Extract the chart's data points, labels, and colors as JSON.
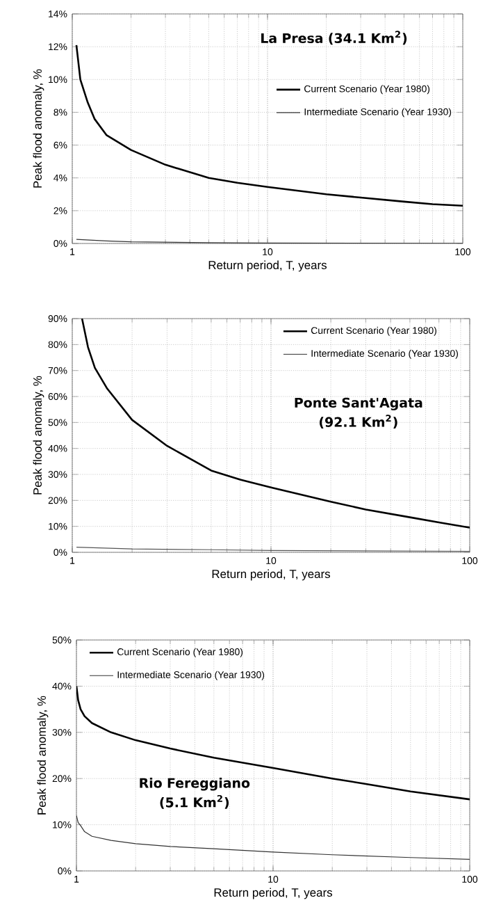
{
  "chart_data": [
    {
      "type": "line",
      "title": "La Presa (34.1 Km$^{2}$)",
      "xlabel": "Return period, T, years",
      "ylabel": "Peak flood anomaly, %",
      "log": "x",
      "grid": true,
      "legend": "right",
      "xlim": [
        1,
        100
      ],
      "xticks": [
        1,
        10,
        100
      ],
      "ylim": [
        0,
        14
      ],
      "yticks": [
        {
          "value": 0,
          "label": "0%"
        },
        {
          "value": 2,
          "label": "2%"
        },
        {
          "value": 4,
          "label": "4%"
        },
        {
          "value": 6,
          "label": "6%"
        },
        {
          "value": 8,
          "label": "8%"
        },
        {
          "value": 10,
          "label": "10%"
        },
        {
          "value": 12,
          "label": "12%"
        },
        {
          "value": 14,
          "label": "14%"
        }
      ],
      "series": [
        {
          "name": "Current Scenario (Year 1980)",
          "color": "#000000",
          "x": [
            1.05,
            1.1,
            1.2,
            1.3,
            1.5,
            2,
            3,
            5,
            7,
            10,
            20,
            30,
            50,
            70,
            100
          ],
          "values": [
            12.1,
            10,
            8.6,
            7.6,
            6.6,
            5.7,
            4.8,
            4.0,
            3.7,
            3.45,
            3.0,
            2.8,
            2.55,
            2.4,
            2.3
          ]
        },
        {
          "name": "Intermediate Scenario (Year 1930)",
          "color": "#333333",
          "x": [
            1.05,
            1.5,
            2,
            5,
            10,
            100
          ],
          "values": [
            0.25,
            0.15,
            0.1,
            0.05,
            0.03,
            0.01
          ]
        }
      ]
    },
    {
      "type": "line",
      "title": "Ponte Sant'Agata (92.1 Km$^{2}$)",
      "xlabel": "Return period, T, years",
      "ylabel": "Peak flood anomaly, %",
      "log": "x",
      "grid": true,
      "legend": "top right",
      "xlim": [
        1,
        100
      ],
      "xticks": [
        1,
        10,
        100
      ],
      "ylim": [
        0,
        90
      ],
      "yticks": [
        {
          "value": 0,
          "label": "0%"
        },
        {
          "value": 10,
          "label": "10%"
        },
        {
          "value": 20,
          "label": "20%"
        },
        {
          "value": 30,
          "label": "30%"
        },
        {
          "value": 40,
          "label": "40%"
        },
        {
          "value": 50,
          "label": "50%"
        },
        {
          "value": 60,
          "label": "60%"
        },
        {
          "value": 70,
          "label": "70%"
        },
        {
          "value": 80,
          "label": "80%"
        },
        {
          "value": 90,
          "label": "90%"
        }
      ],
      "series": [
        {
          "name": "Current Scenario (Year 1980)",
          "color": "#000000",
          "x": [
            1.12,
            1.2,
            1.3,
            1.5,
            2,
            3,
            5,
            7,
            10,
            20,
            30,
            50,
            70,
            100
          ],
          "values": [
            90,
            79,
            71,
            63,
            51,
            41,
            31.5,
            28,
            25,
            19.5,
            16.5,
            13.5,
            11.5,
            9.5
          ]
        },
        {
          "name": "Intermediate Scenario (Year 1930)",
          "color": "#555555",
          "x": [
            1.05,
            2,
            5,
            10,
            100
          ],
          "values": [
            2,
            1.3,
            1,
            0.7,
            0.4
          ]
        }
      ]
    },
    {
      "type": "line",
      "title": "Rio Fereggiano (5.1 Km$^{2}$)",
      "xlabel": "Return period, T, years",
      "ylabel": "Peak flood anomaly, %",
      "log": "x",
      "grid": true,
      "legend": "top left",
      "xlim": [
        1,
        100
      ],
      "xticks": [
        1,
        10,
        100
      ],
      "ylim": [
        0,
        50
      ],
      "yticks": [
        {
          "value": 0,
          "label": "0%"
        },
        {
          "value": 10,
          "label": "10%"
        },
        {
          "value": 20,
          "label": "20%"
        },
        {
          "value": 30,
          "label": "30%"
        },
        {
          "value": 40,
          "label": "40%"
        },
        {
          "value": 50,
          "label": "50%"
        }
      ],
      "series": [
        {
          "name": "Current Scenario (Year 1980)",
          "color": "#000000",
          "x": [
            1,
            1.02,
            1.05,
            1.1,
            1.2,
            1.5,
            2,
            3,
            5,
            10,
            20,
            30,
            50,
            100
          ],
          "values": [
            40,
            37,
            35,
            33.5,
            32,
            30,
            28.3,
            26.5,
            24.5,
            22.3,
            20,
            18.8,
            17.2,
            15.5
          ]
        },
        {
          "name": "Intermediate Scenario (Year 1930)",
          "color": "#333333",
          "x": [
            1,
            1.02,
            1.05,
            1.1,
            1.2,
            1.5,
            2,
            3,
            5,
            10,
            20,
            50,
            100
          ],
          "values": [
            12,
            10.5,
            9.8,
            8.5,
            7.5,
            6.6,
            5.9,
            5.3,
            4.8,
            4.1,
            3.5,
            2.9,
            2.5
          ]
        }
      ]
    }
  ]
}
